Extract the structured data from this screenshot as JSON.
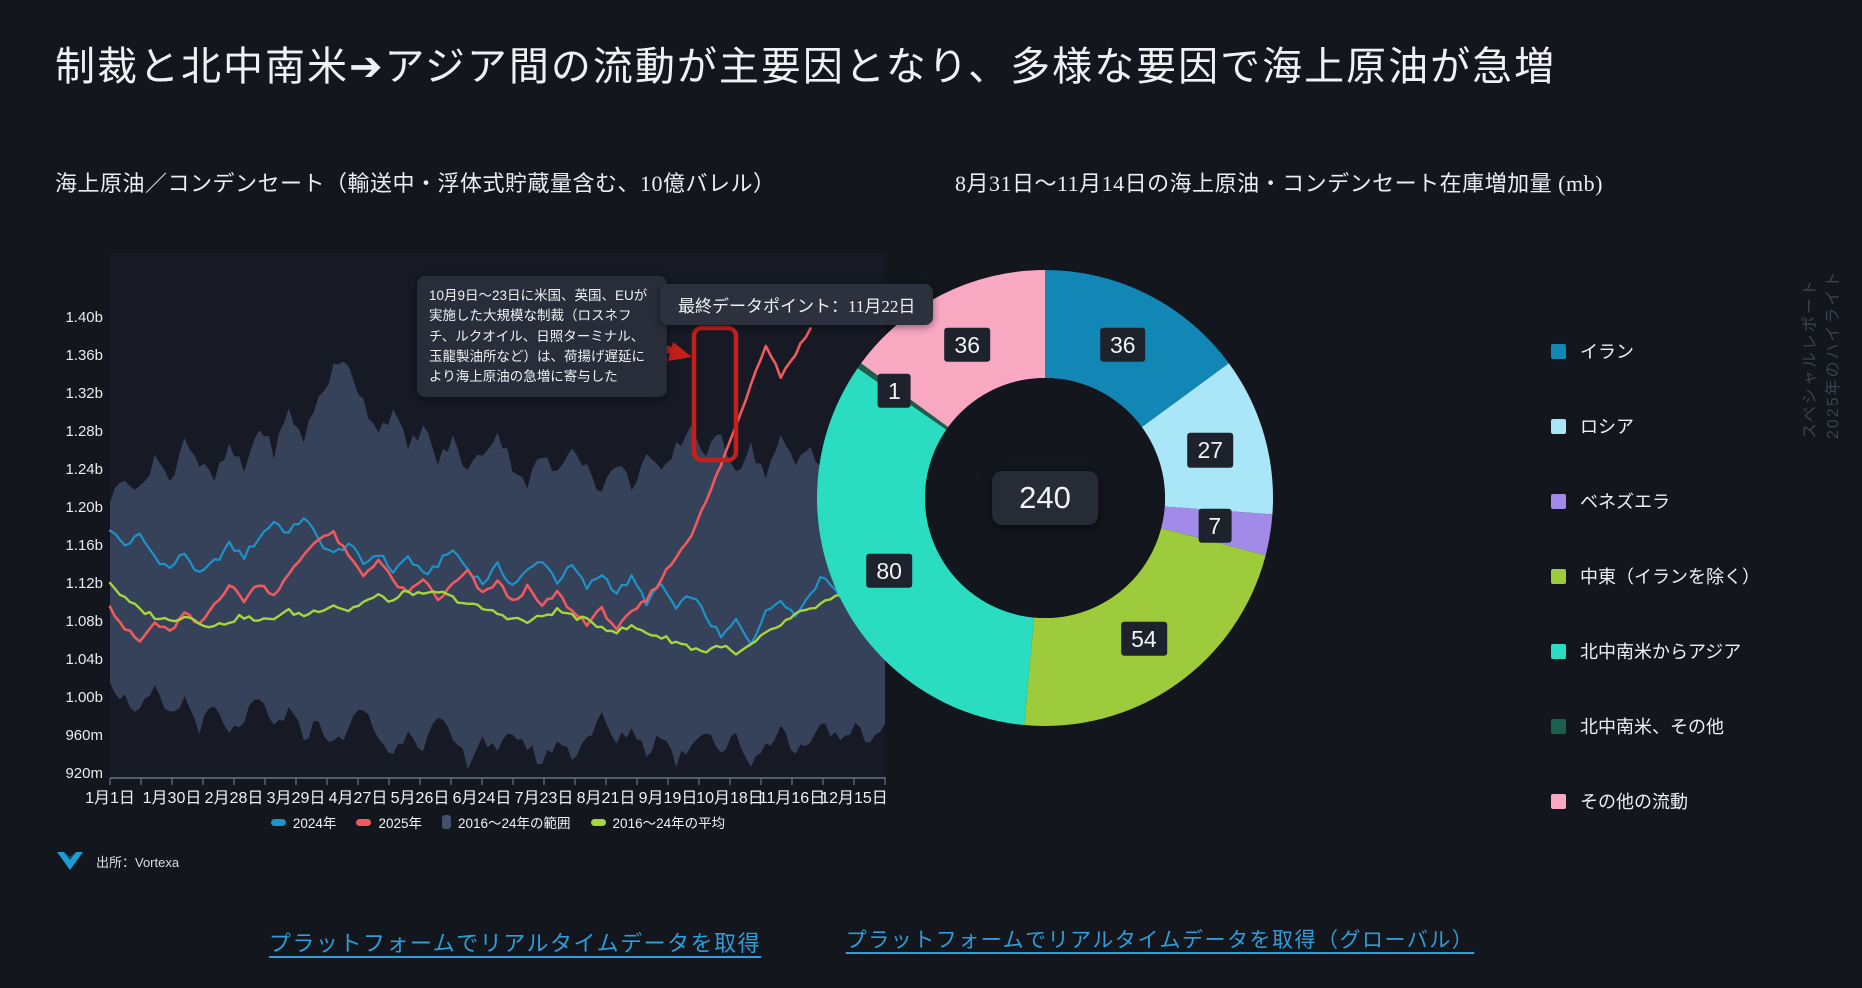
{
  "page": {
    "title": "制裁と北中南米➔アジア間の流動が主要因となり、多様な要因で海上原油が急増",
    "side_label_line1": "スペシャルレポート",
    "side_label_line2": "2025年のハイライト",
    "background": "#14161e"
  },
  "left_panel": {
    "subtitle": "海上原油／コンデンセート（輸送中・浮体式貯蔵量含む、10億バレル）",
    "annotation_sanctions": "10月9日〜23日に米国、英国、EUが実施した大規模な制裁（ロスネフチ、ルクオイル、日照ターミナル、玉龍製油所など）は、荷揚げ遅延により海上原油の急増に寄与した",
    "annotation_last_point": "最終データポイント：11月22日",
    "source_label": "出所：Vortexa",
    "link": "プラットフォームでリアルタイムデータを取得"
  },
  "right_panel": {
    "subtitle": "8月31日〜11月14日の海上原油・コンデンセート在庫増加量 (mb)",
    "link": "プラットフォームでリアルタイムデータを取得（グローバル）"
  },
  "chart_data": [
    {
      "type": "line",
      "title": "海上原油／コンデンセート（輸送中・浮体式貯蔵量含む、10億バレル）",
      "x_unit": "week_of_year",
      "ylim": [
        0.911,
        1.466
      ],
      "grid": false,
      "y_ticks": [
        {
          "label": "1.40b",
          "value": 1.4
        },
        {
          "label": "1.36b",
          "value": 1.36
        },
        {
          "label": "1.32b",
          "value": 1.32
        },
        {
          "label": "1.28b",
          "value": 1.28
        },
        {
          "label": "1.24b",
          "value": 1.24
        },
        {
          "label": "1.20b",
          "value": 1.2
        },
        {
          "label": "1.16b",
          "value": 1.16
        },
        {
          "label": "1.12b",
          "value": 1.12
        },
        {
          "label": "1.08b",
          "value": 1.08
        },
        {
          "label": "1.04b",
          "value": 1.04
        },
        {
          "label": "1.00b",
          "value": 1.0
        },
        {
          "label": "960m",
          "value": 0.96
        },
        {
          "label": "920m",
          "value": 0.92
        }
      ],
      "x_tick_labels": [
        "1月1日",
        "1月30日",
        "2月28日",
        "3月29日",
        "4月27日",
        "5月26日",
        "6月24日",
        "7月23日",
        "8月21日",
        "9月19日",
        "10月18日",
        "11月16日",
        "12月15日"
      ],
      "band": {
        "name": "2016〜24年の範囲",
        "color": "#36415a",
        "upper": [
          1.205,
          1.235,
          1.215,
          1.255,
          1.225,
          1.275,
          1.245,
          1.228,
          1.262,
          1.238,
          1.285,
          1.258,
          1.3,
          1.272,
          1.315,
          1.345,
          1.352,
          1.31,
          1.282,
          1.3,
          1.262,
          1.285,
          1.248,
          1.27,
          1.238,
          1.258,
          1.278,
          1.245,
          1.225,
          1.255,
          1.232,
          1.268,
          1.242,
          1.215,
          1.248,
          1.222,
          1.255,
          1.232,
          1.262,
          1.285,
          1.255,
          1.275,
          1.24,
          1.262,
          1.235,
          1.27,
          1.245,
          1.265,
          1.235,
          1.262,
          1.242,
          1.268,
          1.248
        ],
        "lower": [
          1.015,
          0.998,
          0.985,
          1.005,
          0.978,
          0.998,
          0.968,
          0.988,
          0.958,
          0.978,
          0.995,
          0.968,
          0.985,
          0.958,
          0.975,
          0.948,
          0.968,
          0.988,
          0.958,
          0.938,
          0.968,
          0.948,
          0.975,
          0.955,
          0.932,
          0.958,
          0.938,
          0.965,
          0.948,
          0.93,
          0.955,
          0.938,
          0.958,
          0.978,
          0.95,
          0.968,
          0.942,
          0.962,
          0.932,
          0.952,
          0.968,
          0.942,
          0.958,
          0.93,
          0.95,
          0.968,
          0.94,
          0.958,
          0.975,
          0.948,
          0.965,
          0.952,
          0.972
        ]
      },
      "series": [
        {
          "name": "2024年",
          "color": "#1d93c8",
          "values": [
            1.175,
            1.16,
            1.17,
            1.148,
            1.135,
            1.152,
            1.128,
            1.142,
            1.16,
            1.148,
            1.168,
            1.185,
            1.172,
            1.19,
            1.165,
            1.15,
            1.162,
            1.14,
            1.152,
            1.132,
            1.148,
            1.128,
            1.14,
            1.155,
            1.135,
            1.12,
            1.138,
            1.118,
            1.132,
            1.145,
            1.122,
            1.138,
            1.115,
            1.13,
            1.11,
            1.125,
            1.1,
            1.118,
            1.092,
            1.108,
            1.085,
            1.062,
            1.08,
            1.058,
            1.088,
            1.105,
            1.085,
            1.112,
            1.128,
            1.105,
            1.122,
            1.108,
            1.115
          ]
        },
        {
          "name": "2025年",
          "color": "#ef5a5e",
          "values": [
            1.095,
            1.072,
            1.058,
            1.078,
            1.068,
            1.088,
            1.075,
            1.098,
            1.118,
            1.102,
            1.12,
            1.108,
            1.128,
            1.15,
            1.168,
            1.172,
            1.148,
            1.128,
            1.145,
            1.122,
            1.108,
            1.125,
            1.102,
            1.118,
            1.132,
            1.108,
            1.122,
            1.1,
            1.115,
            1.095,
            1.11,
            1.09,
            1.078,
            1.092,
            1.072,
            1.088,
            1.102,
            1.125,
            1.148,
            1.172,
            1.205,
            1.245,
            1.285,
            1.33,
            1.372,
            1.338,
            1.362,
            1.388
          ]
        },
        {
          "name": "2016〜24年の平均",
          "color": "#a6d53c",
          "values": [
            1.12,
            1.103,
            1.092,
            1.085,
            1.08,
            1.086,
            1.079,
            1.074,
            1.08,
            1.085,
            1.079,
            1.084,
            1.09,
            1.086,
            1.092,
            1.097,
            1.091,
            1.1,
            1.106,
            1.101,
            1.112,
            1.106,
            1.111,
            1.104,
            1.098,
            1.093,
            1.088,
            1.083,
            1.079,
            1.085,
            1.091,
            1.086,
            1.08,
            1.074,
            1.069,
            1.074,
            1.068,
            1.063,
            1.058,
            1.052,
            1.048,
            1.055,
            1.044,
            1.054,
            1.066,
            1.076,
            1.086,
            1.092,
            1.1,
            1.106,
            1.112,
            1.116,
            1.121
          ]
        }
      ],
      "legend_items": [
        {
          "label": "2024年",
          "color": "#1d93c8",
          "shape": "pill"
        },
        {
          "label": "2025年",
          "color": "#ef5a5e",
          "shape": "pill"
        },
        {
          "label": "2016〜24年の範囲",
          "color": "#434f6b",
          "shape": "square"
        },
        {
          "label": "2016〜24年の平均",
          "color": "#a6d53c",
          "shape": "pill"
        }
      ],
      "annotation_highlight_color": "#c3201c"
    },
    {
      "type": "pie",
      "title": "8月31日〜11月14日の海上原油・コンデンセート在庫増加量 (mb)",
      "center_total": 240,
      "legend_position": "right",
      "slices": [
        {
          "label": "イラン",
          "value": 36,
          "color": "#1287b5"
        },
        {
          "label": "ロシア",
          "value": 27,
          "color": "#a8e6f8"
        },
        {
          "label": "ベネズエラ",
          "value": 7,
          "color": "#a18ae8"
        },
        {
          "label": "中東（イランを除く）",
          "value": 54,
          "color": "#9dcb3b"
        },
        {
          "label": "北中南米からアジア",
          "value": 80,
          "color": "#2addc1"
        },
        {
          "label": "北中南米、その他",
          "value": 1,
          "color": "#1d5f4d",
          "label_r": 185
        },
        {
          "label": "その他の流動",
          "value": 36,
          "color": "#f9a8c2"
        }
      ]
    }
  ]
}
